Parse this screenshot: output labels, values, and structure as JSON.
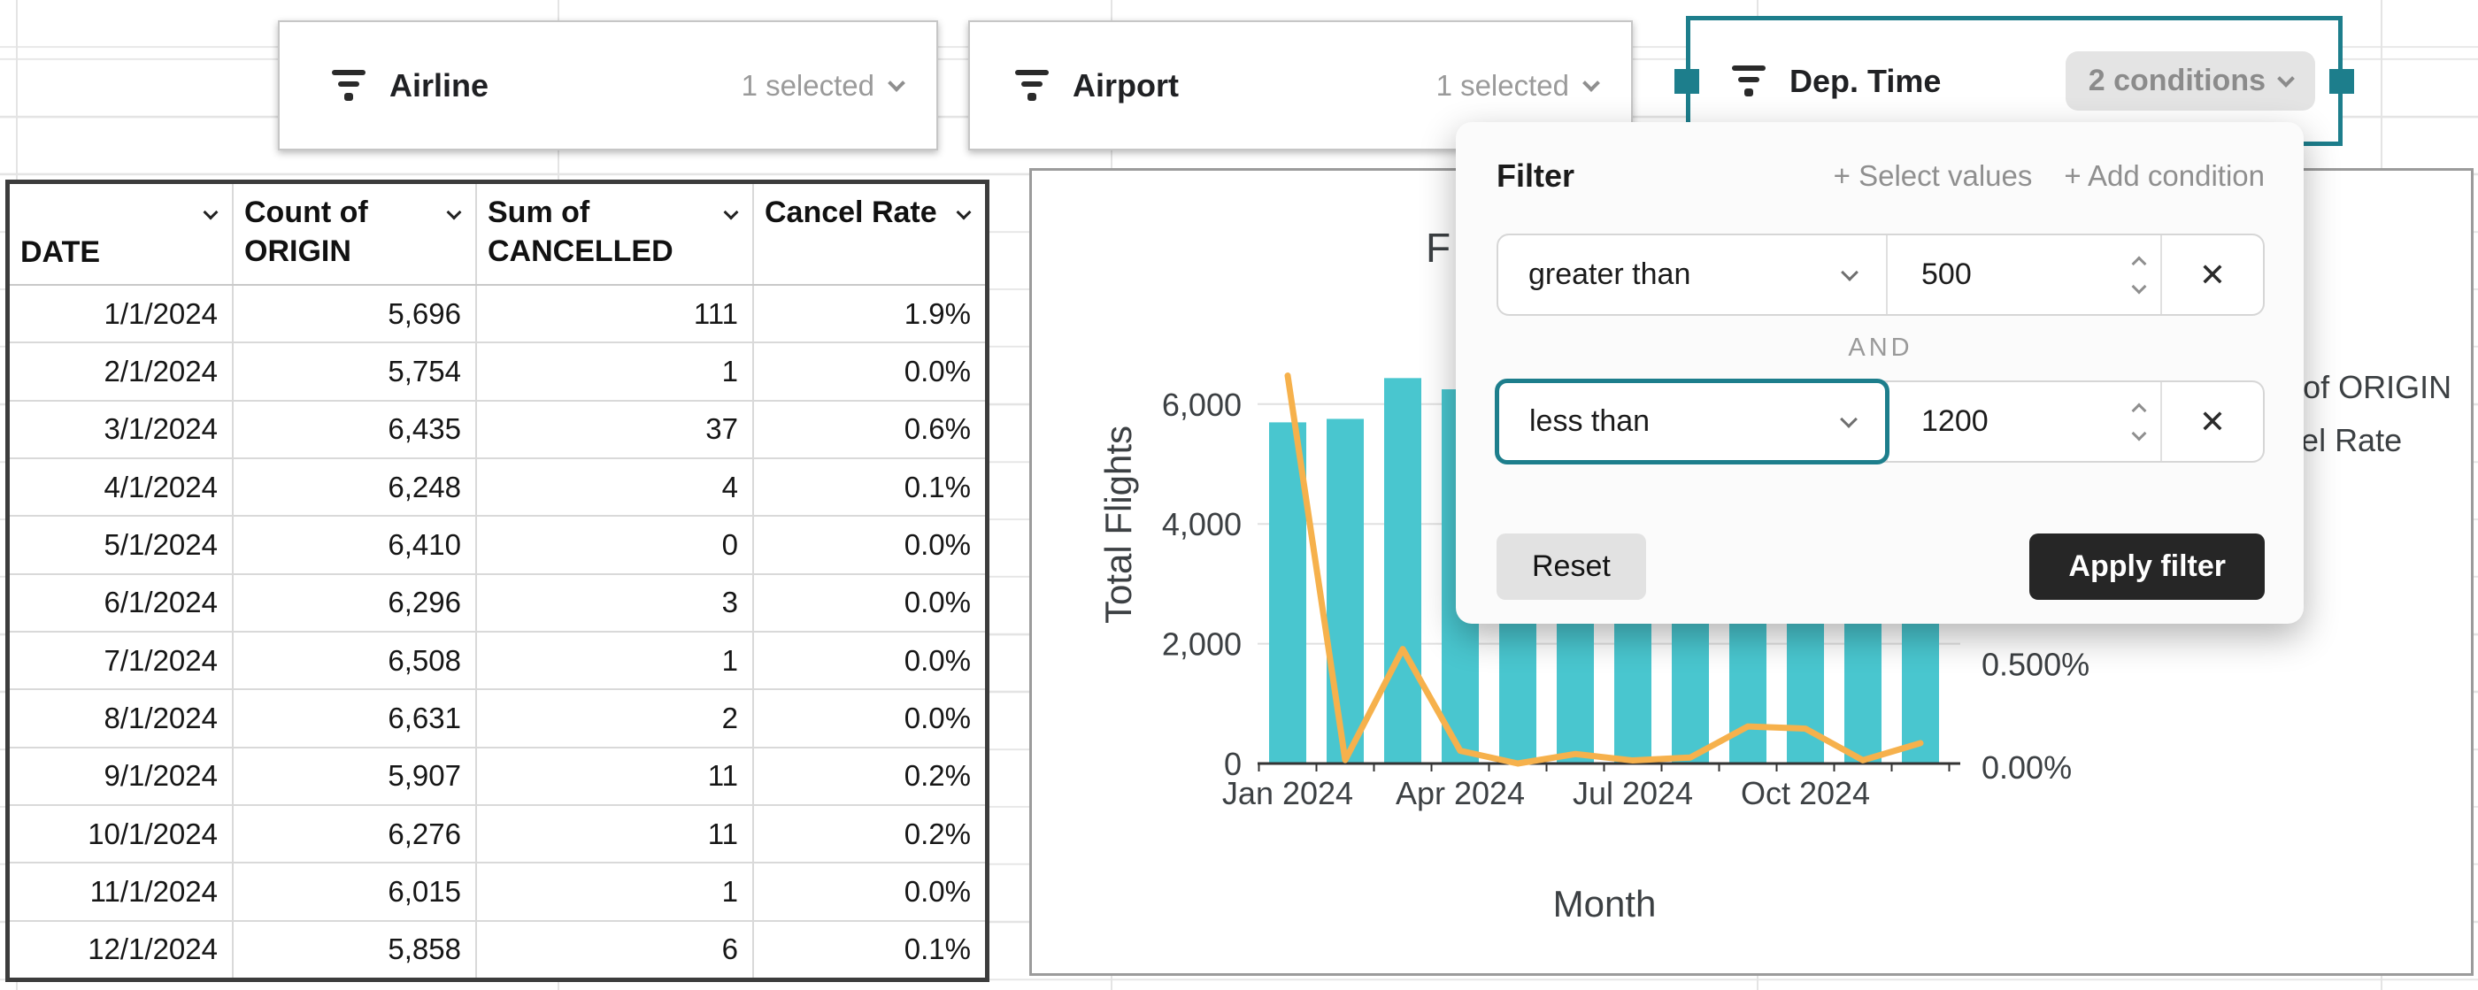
{
  "filters": {
    "airline": {
      "label": "Airline",
      "status": "1 selected"
    },
    "airport": {
      "label": "Airport",
      "status": "1 selected"
    },
    "dep_time": {
      "label": "Dep. Time",
      "status": "2 conditions"
    }
  },
  "filter_popup": {
    "title": "Filter",
    "select_values_link": "+ Select values",
    "add_condition_link": "+ Add condition",
    "conjunction": "AND",
    "conditions": [
      {
        "operator": "greater than",
        "value": "500"
      },
      {
        "operator": "less than",
        "value": "1200"
      }
    ],
    "remove_label": "✕",
    "reset_label": "Reset",
    "apply_label": "Apply filter"
  },
  "table": {
    "headers": [
      "DATE",
      "Count of ORIGIN",
      "Sum of CANCELLED",
      "Cancel Rate"
    ],
    "rows": [
      [
        "1/1/2024",
        "5,696",
        "111",
        "1.9%"
      ],
      [
        "2/1/2024",
        "5,754",
        "1",
        "0.0%"
      ],
      [
        "3/1/2024",
        "6,435",
        "37",
        "0.6%"
      ],
      [
        "4/1/2024",
        "6,248",
        "4",
        "0.1%"
      ],
      [
        "5/1/2024",
        "6,410",
        "0",
        "0.0%"
      ],
      [
        "6/1/2024",
        "6,296",
        "3",
        "0.0%"
      ],
      [
        "7/1/2024",
        "6,508",
        "1",
        "0.0%"
      ],
      [
        "8/1/2024",
        "6,631",
        "2",
        "0.0%"
      ],
      [
        "9/1/2024",
        "5,907",
        "11",
        "0.2%"
      ],
      [
        "10/1/2024",
        "6,276",
        "11",
        "0.2%"
      ],
      [
        "11/1/2024",
        "6,015",
        "1",
        "0.0%"
      ],
      [
        "12/1/2024",
        "5,858",
        "6",
        "0.1%"
      ]
    ]
  },
  "chart_data": {
    "type": "bar+line dual-axis",
    "title_visible": "F",
    "categories": [
      "Jan 2024",
      "Feb 2024",
      "Mar 2024",
      "Apr 2024",
      "May 2024",
      "Jun 2024",
      "Jul 2024",
      "Aug 2024",
      "Sep 2024",
      "Oct 2024",
      "Nov 2024",
      "Dec 2024"
    ],
    "x_tick_labels_visible": [
      "Jan 2024",
      "Apr 2024",
      "Jul 2024",
      "Oct 2024"
    ],
    "series": [
      {
        "name": "Count of ORIGIN",
        "type": "bar",
        "values": [
          5696,
          5754,
          6435,
          6248,
          6410,
          6296,
          6508,
          6631,
          5907,
          6276,
          6015,
          5858
        ]
      },
      {
        "name": "Cancel Rate",
        "type": "line",
        "unit": "%",
        "values": [
          1.9,
          0.0,
          0.6,
          0.1,
          0.0,
          0.0,
          0.0,
          0.0,
          0.2,
          0.2,
          0.0,
          0.1
        ]
      }
    ],
    "cancelled_counts": [
      111,
      1,
      37,
      4,
      0,
      3,
      1,
      2,
      11,
      11,
      1,
      6
    ],
    "xlabel": "Month",
    "ylabel_left": "Total Flights",
    "left_ticks": [
      "0",
      "2,000",
      "4,000",
      "6,000"
    ],
    "right_ticks_visible": [
      "0.00%",
      "0.500%"
    ],
    "legend_entries": [
      "Count of ORIGIN",
      "Cancel Rate"
    ],
    "grid": true,
    "legend_position": "right",
    "colors": {
      "bar": "#49c6cf",
      "line": "#f6b14c"
    }
  },
  "colors": {
    "accent_teal": "#1d7e8c",
    "bar_teal": "#49c6cf",
    "line_orange": "#f6b14c",
    "apply_button": "#262626"
  }
}
